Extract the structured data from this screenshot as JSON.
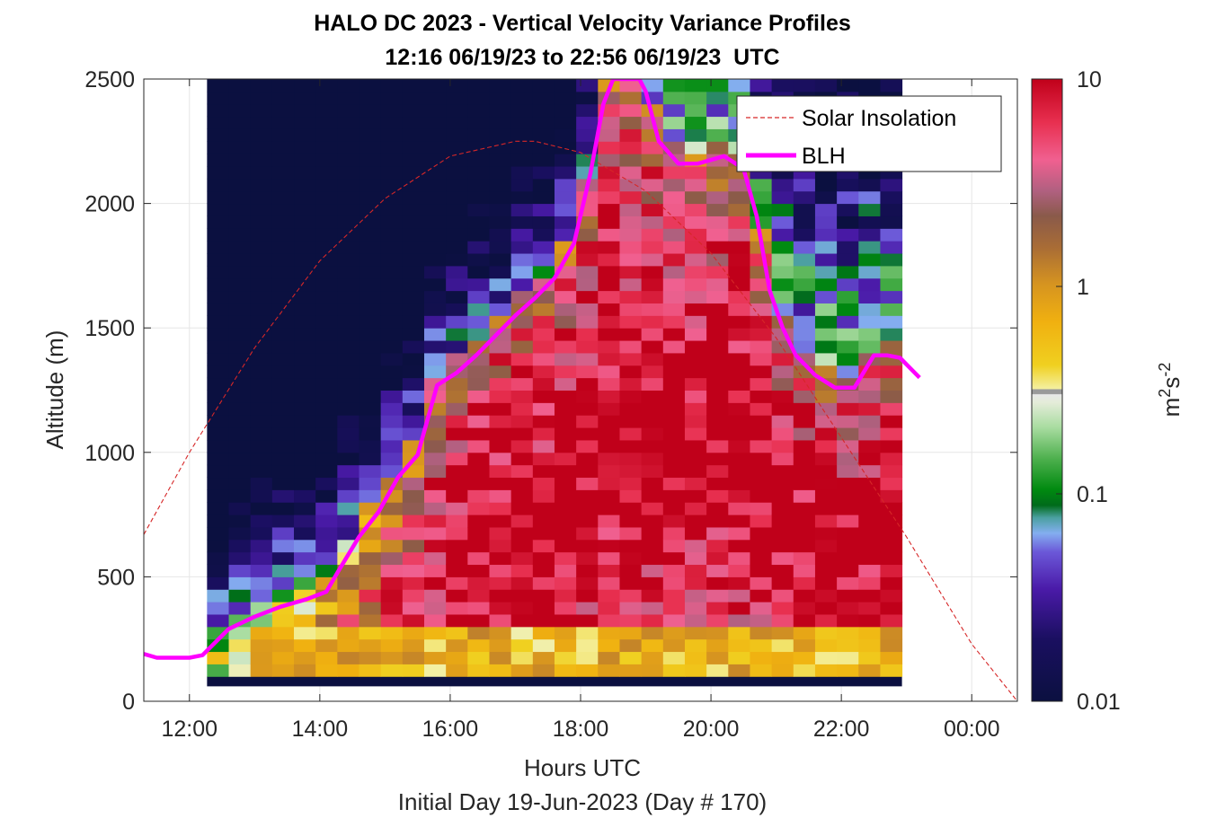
{
  "chart_data": {
    "type": "heatmap",
    "title": "HALO DC 2023 - Vertical Velocity Variance Profiles",
    "subtitle": "12:16 06/19/23 to 22:56 06/19/23  UTC",
    "xlabel": "Hours UTC",
    "xlabel2": "Initial Day 19-Jun-2023 (Day # 170)",
    "ylabel": "Altitude (m)",
    "colorbar_label_base": "m",
    "colorbar_label_sup1": "2",
    "colorbar_label_mid": "s",
    "colorbar_label_sup2": "-2",
    "x_ticks": [
      "12:00",
      "14:00",
      "16:00",
      "18:00",
      "20:00",
      "22:00",
      "00:00"
    ],
    "x_tick_hours": [
      12,
      14,
      16,
      18,
      20,
      22,
      24
    ],
    "y_ticks": [
      "0",
      "500",
      "1000",
      "1500",
      "2000",
      "2500"
    ],
    "y_tick_values": [
      0,
      500,
      1000,
      1500,
      2000,
      2500
    ],
    "xlim": [
      11.3,
      24.7
    ],
    "ylim": [
      0,
      2500
    ],
    "colorbar_ticks": [
      "0.01",
      "0.1",
      "1",
      "10"
    ],
    "colorbar_tick_values": [
      0.01,
      0.1,
      1,
      10
    ],
    "colorbar_scale": "log",
    "heatmap": {
      "x_start_hours": 12.27,
      "x_end_hours": 22.93,
      "y_start_m": 100,
      "y_end_m": 2500,
      "n_columns": 32,
      "cell_height_m": 50,
      "values_note": "log10 variance field"
    },
    "series": [
      {
        "name": "Solar Insolation",
        "style": "dashed",
        "color": "#d62728",
        "x": [
          11.3,
          12.0,
          13.0,
          14.0,
          15.0,
          16.0,
          17.0,
          17.3,
          18.0,
          19.0,
          20.0,
          21.0,
          22.0,
          23.0,
          24.0,
          24.7
        ],
        "y": [
          670,
          1000,
          1420,
          1770,
          2020,
          2190,
          2250,
          2250,
          2205,
          2050,
          1800,
          1460,
          1060,
          660,
          230,
          0
        ]
      },
      {
        "name": "BLH",
        "style": "solid",
        "color": "#ff00ff",
        "x": [
          11.3,
          11.5,
          12.0,
          12.2,
          12.6,
          13.0,
          13.4,
          13.8,
          14.1,
          14.3,
          14.6,
          14.9,
          15.2,
          15.5,
          15.8,
          16.1,
          16.4,
          16.7,
          17.0,
          17.3,
          17.6,
          17.9,
          18.15,
          18.35,
          18.5,
          18.9,
          19.0,
          19.2,
          19.5,
          19.8,
          20.2,
          20.5,
          20.7,
          20.9,
          21.1,
          21.3,
          21.6,
          21.9,
          22.2,
          22.5,
          22.7,
          22.9,
          23.2
        ],
        "y": [
          190,
          175,
          175,
          185,
          290,
          340,
          380,
          410,
          440,
          530,
          660,
          760,
          900,
          990,
          1270,
          1320,
          1390,
          1470,
          1550,
          1620,
          1700,
          1840,
          2120,
          2400,
          2500,
          2500,
          2450,
          2250,
          2160,
          2160,
          2190,
          2140,
          1950,
          1650,
          1500,
          1390,
          1310,
          1260,
          1260,
          1390,
          1390,
          1380,
          1300
        ]
      }
    ],
    "legend": {
      "placement": "top-right",
      "entries": [
        "Solar Insolation",
        "BLH"
      ]
    },
    "grid": true,
    "colors": {
      "background": "#ffffff",
      "low": "#0b1040",
      "blh": "#ff00ff",
      "insolation": "#d62728"
    }
  }
}
